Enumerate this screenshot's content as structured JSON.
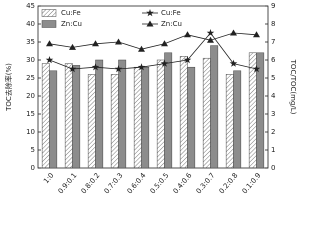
{
  "chart_data": {
    "type": "bar",
    "ylabel": "TOC去除率(%)",
    "y2label": "TOC/TOC(mg/L)",
    "categories": [
      "1:0",
      "0.9:0.1",
      "0.8:0.2",
      "0.7:0.3",
      "0.6:0.4",
      "0.5:0.5",
      "0.4:0.6",
      "0.3:0.7",
      "0.2:0.8",
      "0.1:0.9"
    ],
    "series": [
      {
        "name": "Cu:Fe",
        "type": "bar",
        "pattern": "hatch",
        "color": "#ffffff",
        "values": [
          29,
          29,
          26,
          26,
          28,
          30,
          31,
          30.5,
          26,
          32
        ]
      },
      {
        "name": "Zn:Cu",
        "type": "bar",
        "color": "#8c8c8c",
        "values": [
          27,
          28.5,
          30,
          30,
          28,
          32,
          28,
          34,
          27,
          32
        ]
      },
      {
        "name": "Cu:Fe",
        "type": "line",
        "marker": "star",
        "color": "#222222",
        "axis": "y2",
        "values": [
          6.0,
          5.5,
          5.6,
          5.5,
          5.6,
          5.8,
          6.0,
          7.5,
          5.8,
          5.5
        ]
      },
      {
        "name": "Zn:Cu",
        "type": "line",
        "marker": "triangle",
        "color": "#222222",
        "axis": "y2",
        "values": [
          6.9,
          6.7,
          6.9,
          7.0,
          6.6,
          6.9,
          7.4,
          7.1,
          7.5,
          7.4
        ]
      }
    ],
    "ylim": [
      0,
      45
    ],
    "yticks": [
      0,
      5,
      10,
      15,
      20,
      25,
      30,
      35,
      40,
      45
    ],
    "y2lim": [
      0,
      9
    ],
    "y2ticks": [
      0,
      1,
      2,
      3,
      4,
      5,
      6,
      7,
      8,
      9
    ]
  }
}
